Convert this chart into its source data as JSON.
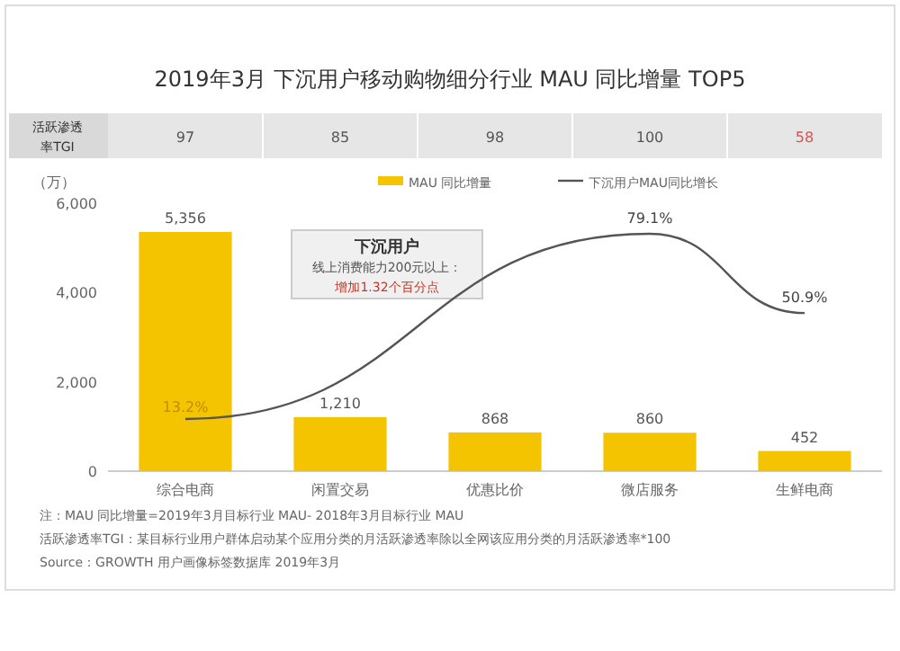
{
  "chart_data": {
    "type": "bar",
    "title": "2019年3月 下沉用户移动购物细分行业 MAU 同比增量 TOP5",
    "ylabel": "（万）",
    "categories": [
      "综合电商",
      "闲置交易",
      "优惠比价",
      "微店服务",
      "生鲜电商"
    ],
    "series": [
      {
        "name": "MAU 同比增量",
        "color": "#f5c400",
        "values": [
          5356,
          1210,
          868,
          860,
          452
        ],
        "value_labels": [
          "5,356",
          "1,210",
          "868",
          "860",
          "452"
        ]
      },
      {
        "name": "下沉用户MAU同比增长",
        "type": "line",
        "axis": "y2",
        "color": "#555555",
        "values": [
          13.2,
          null,
          null,
          79.1,
          50.9
        ],
        "value_labels": [
          "13.2%",
          null,
          null,
          "79.1%",
          "50.9%"
        ]
      }
    ],
    "ylim": [
      0,
      6000
    ],
    "yticks": [
      {
        "value": 0,
        "label": "0"
      },
      {
        "value": 2000,
        "label": "2,000"
      },
      {
        "value": 4000,
        "label": "4,000"
      },
      {
        "value": 6000,
        "label": "6,000"
      }
    ],
    "grid": false,
    "legend": "top right",
    "tick_labels": "y",
    "annotations": [
      "活跃渗透率TGI",
      "97",
      "85",
      "98",
      "100",
      "58",
      "下沉用户",
      "线上消费能力200元以上：",
      "增加1.32个百分点",
      "注：MAU 同比增量=2019年3月目标行业 MAU- 2018年3月目标行业 MAU",
      "活跃渗透率TGI：某目标行业用户群体启动某个应用分类的月活跃渗透率除以全网该应用分类的月活跃渗透率*100",
      "Source：GROWTH 用户画像标签数据库 2019年3月"
    ]
  }
}
